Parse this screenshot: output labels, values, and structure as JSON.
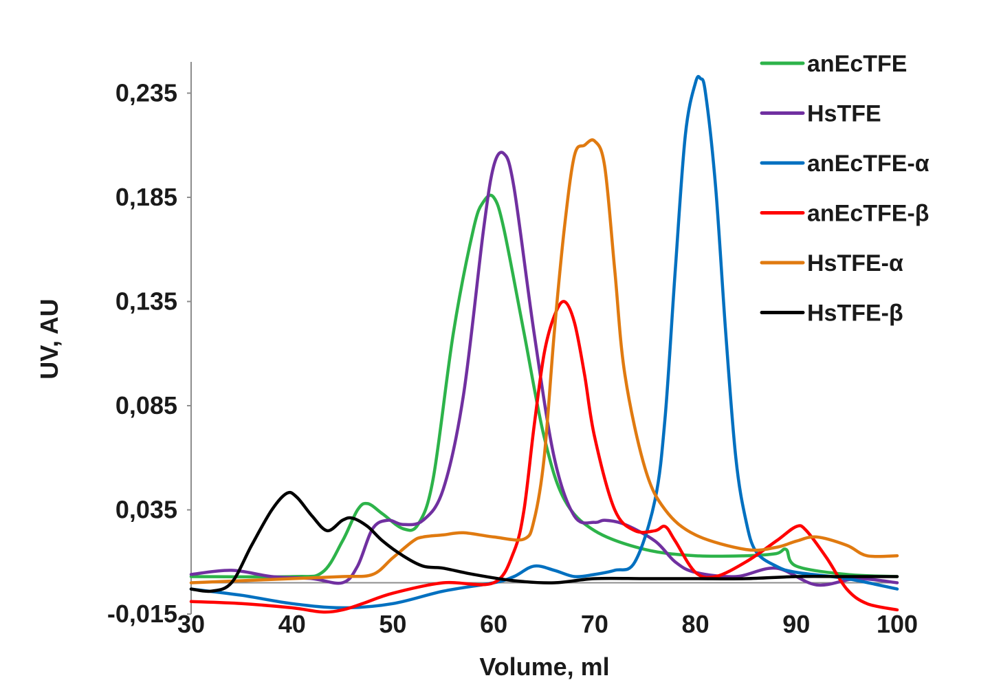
{
  "chart_data": {
    "type": "line",
    "xlabel": "Volume, ml",
    "ylabel": "UV, AU",
    "xlim": [
      30,
      100
    ],
    "ylim": [
      -0.015,
      0.25
    ],
    "x_ticks": [
      {
        "value": 30,
        "label": "30"
      },
      {
        "value": 40,
        "label": "40"
      },
      {
        "value": 50,
        "label": "50"
      },
      {
        "value": 60,
        "label": "60"
      },
      {
        "value": 70,
        "label": "70"
      },
      {
        "value": 80,
        "label": "80"
      },
      {
        "value": 90,
        "label": "90"
      },
      {
        "value": 100,
        "label": "100"
      }
    ],
    "y_ticks": [
      {
        "value": -0.015,
        "label": "-0,015"
      },
      {
        "value": 0.035,
        "label": "0,035"
      },
      {
        "value": 0.085,
        "label": "0,085"
      },
      {
        "value": 0.135,
        "label": "0,135"
      },
      {
        "value": 0.185,
        "label": "0,185"
      },
      {
        "value": 0.235,
        "label": "0,235"
      }
    ],
    "legend_position": "top-right",
    "grid": false,
    "series": [
      {
        "name": "anEcTFE",
        "color": "#2db34a",
        "x": [
          30,
          40,
          43,
          45,
          46.5,
          47.5,
          49,
          51,
          52.5,
          54,
          56,
          58,
          59,
          60,
          61,
          63,
          65,
          67,
          70,
          75,
          80,
          85,
          88,
          89,
          90,
          95,
          100
        ],
        "y": [
          0.003,
          0.003,
          0.005,
          0.02,
          0.035,
          0.038,
          0.033,
          0.026,
          0.028,
          0.05,
          0.12,
          0.17,
          0.183,
          0.185,
          0.17,
          0.12,
          0.07,
          0.04,
          0.025,
          0.016,
          0.013,
          0.013,
          0.014,
          0.016,
          0.008,
          0.004,
          0.003
        ]
      },
      {
        "name": "HsTFE",
        "color": "#7030a0",
        "x": [
          30,
          34,
          38,
          42,
          45,
          46.5,
          48,
          49.5,
          51,
          53,
          55,
          57,
          59,
          60,
          61,
          62,
          64,
          66,
          68,
          70,
          71,
          73,
          76,
          78,
          80,
          84,
          88,
          92,
          96,
          100
        ],
        "y": [
          0.004,
          0.006,
          0.003,
          0.002,
          0.0,
          0.008,
          0.026,
          0.03,
          0.028,
          0.03,
          0.045,
          0.09,
          0.17,
          0.2,
          0.206,
          0.19,
          0.12,
          0.06,
          0.032,
          0.029,
          0.03,
          0.028,
          0.02,
          0.01,
          0.005,
          0.003,
          0.007,
          -0.001,
          0.002,
          0.0
        ]
      },
      {
        "name": "anEcTFE-α",
        "color": "#0070c0",
        "x": [
          30,
          35,
          40,
          45,
          50,
          55,
          60,
          62,
          64,
          66,
          68,
          70,
          72,
          74,
          76,
          77,
          78,
          79,
          80,
          80.5,
          81,
          82,
          83,
          84,
          85,
          86,
          88,
          90,
          95,
          100
        ],
        "y": [
          -0.003,
          -0.006,
          -0.01,
          -0.012,
          -0.01,
          -0.004,
          0.0,
          0.003,
          0.008,
          0.006,
          0.003,
          0.004,
          0.006,
          0.01,
          0.04,
          0.08,
          0.15,
          0.215,
          0.24,
          0.242,
          0.235,
          0.19,
          0.12,
          0.06,
          0.03,
          0.015,
          0.008,
          0.005,
          0.002,
          -0.003
        ]
      },
      {
        "name": "anEcTFE-β",
        "color": "#ff0000",
        "x": [
          30,
          35,
          40,
          43,
          45,
          47,
          50,
          55,
          60,
          62,
          63,
          64,
          65,
          66,
          67,
          68,
          69,
          70,
          72,
          74,
          76,
          77,
          78,
          80,
          82,
          85,
          88,
          90,
          91,
          93,
          95,
          97,
          100
        ],
        "y": [
          -0.009,
          -0.01,
          -0.012,
          -0.014,
          -0.013,
          -0.01,
          -0.005,
          0.0,
          0.0,
          0.015,
          0.035,
          0.075,
          0.11,
          0.128,
          0.135,
          0.125,
          0.1,
          0.07,
          0.035,
          0.025,
          0.025,
          0.027,
          0.02,
          0.005,
          0.003,
          0.01,
          0.02,
          0.027,
          0.025,
          0.012,
          -0.003,
          -0.01,
          -0.013
        ]
      },
      {
        "name": "HsTFE-α",
        "color": "#e07a10",
        "x": [
          30,
          35,
          40,
          45,
          48,
          50,
          52,
          53,
          55,
          57,
          60,
          63,
          64,
          65,
          66,
          67,
          68,
          69,
          70,
          71,
          72,
          73,
          75,
          77,
          80,
          85,
          88,
          90,
          92,
          95,
          97,
          100
        ],
        "y": [
          0.0,
          0.001,
          0.002,
          0.003,
          0.004,
          0.012,
          0.02,
          0.022,
          0.023,
          0.024,
          0.022,
          0.021,
          0.03,
          0.06,
          0.12,
          0.17,
          0.205,
          0.21,
          0.212,
          0.2,
          0.15,
          0.1,
          0.055,
          0.035,
          0.023,
          0.016,
          0.017,
          0.02,
          0.022,
          0.018,
          0.013,
          0.013
        ]
      },
      {
        "name": "HsTFE-β",
        "color": "#000000",
        "x": [
          30,
          32,
          34,
          36,
          38,
          39.5,
          40.5,
          42,
          43.5,
          45,
          46,
          47.5,
          49,
          51,
          53,
          55,
          58,
          62,
          66,
          70,
          75,
          80,
          85,
          90,
          95,
          100
        ],
        "y": [
          -0.003,
          -0.004,
          0.0,
          0.018,
          0.035,
          0.043,
          0.041,
          0.032,
          0.025,
          0.03,
          0.031,
          0.027,
          0.02,
          0.013,
          0.008,
          0.007,
          0.004,
          0.001,
          0.0,
          0.002,
          0.002,
          0.002,
          0.002,
          0.003,
          0.003,
          0.003
        ]
      }
    ]
  }
}
